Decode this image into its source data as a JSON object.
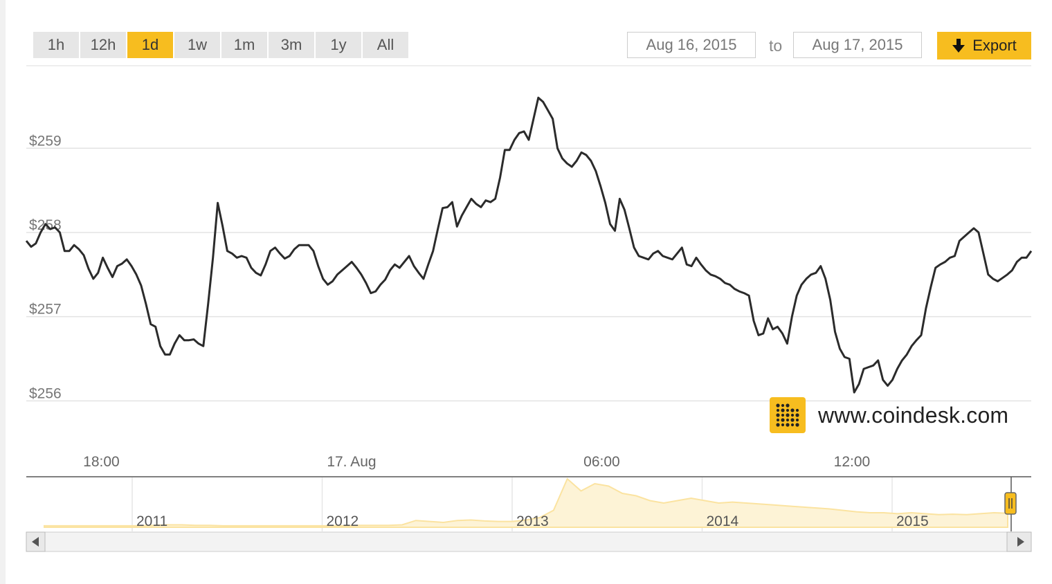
{
  "toolbar": {
    "ranges": [
      "1h",
      "12h",
      "1d",
      "1w",
      "1m",
      "3m",
      "1y",
      "All"
    ],
    "active_range": "1d",
    "from_date": "Aug 16, 2015",
    "to_label": "to",
    "to_date": "Aug 17, 2015",
    "export_label": "Export"
  },
  "branding": {
    "site": "www.coindesk.com"
  },
  "colors": {
    "accent": "#f7bd1f",
    "line": "#2b2b2b",
    "grid": "#e3e3e3",
    "navigator_fill": "#fdf3d6"
  },
  "chart_data": {
    "type": "line",
    "title": "",
    "xlabel": "",
    "ylabel": "",
    "ylim": [
      255.83,
      259.98
    ],
    "y_ticks": [
      256,
      257,
      258,
      259
    ],
    "y_tick_labels": [
      "$256",
      "$257",
      "$258",
      "$259"
    ],
    "x_tick_labels": [
      "18:00",
      "17. Aug",
      "06:00",
      "12:00"
    ],
    "x_tick_positions_hours": [
      1.8,
      7.8,
      13.8,
      19.8
    ],
    "x_range_hours": [
      0,
      24.1
    ],
    "series": [
      {
        "values": [
          257.9,
          257.83,
          257.87,
          258.0,
          258.1,
          258.04,
          258.06,
          258.0,
          257.78,
          257.78,
          257.85,
          257.8,
          257.73,
          257.57,
          257.45,
          257.52,
          257.7,
          257.58,
          257.47,
          257.6,
          257.63,
          257.68,
          257.6,
          257.5,
          257.37,
          257.15,
          256.91,
          256.88,
          256.65,
          256.55,
          256.55,
          256.68,
          256.78,
          256.72,
          256.72,
          256.73,
          256.68,
          256.65,
          257.15,
          257.7,
          258.35,
          258.08,
          257.78,
          257.75,
          257.7,
          257.72,
          257.7,
          257.58,
          257.52,
          257.49,
          257.62,
          257.78,
          257.82,
          257.75,
          257.69,
          257.72,
          257.8,
          257.85,
          257.85,
          257.85,
          257.78,
          257.6,
          257.45,
          257.38,
          257.42,
          257.5,
          257.55,
          257.6,
          257.65,
          257.58,
          257.5,
          257.4,
          257.28,
          257.3,
          257.38,
          257.44,
          257.55,
          257.62,
          257.58,
          257.65,
          257.72,
          257.6,
          257.52,
          257.45,
          257.62,
          257.78,
          258.04,
          258.29,
          258.3,
          258.36,
          258.07,
          258.2,
          258.3,
          258.4,
          258.34,
          258.3,
          258.38,
          258.36,
          258.4,
          258.65,
          258.98,
          258.98,
          259.1,
          259.18,
          259.2,
          259.1,
          259.35,
          259.6,
          259.55,
          259.45,
          259.35,
          259.0,
          258.88,
          258.82,
          258.78,
          258.85,
          258.95,
          258.92,
          258.85,
          258.73,
          258.55,
          258.35,
          258.1,
          258.02,
          258.4,
          258.27,
          258.05,
          257.82,
          257.72,
          257.7,
          257.68,
          257.75,
          257.78,
          257.72,
          257.7,
          257.68,
          257.75,
          257.82,
          257.62,
          257.6,
          257.7,
          257.62,
          257.55,
          257.5,
          257.48,
          257.45,
          257.4,
          257.38,
          257.33,
          257.3,
          257.28,
          257.25,
          256.95,
          256.78,
          256.8,
          256.98,
          256.85,
          256.88,
          256.8,
          256.68,
          257.0,
          257.25,
          257.38,
          257.45,
          257.5,
          257.52,
          257.6,
          257.45,
          257.2,
          256.82,
          256.62,
          256.52,
          256.5,
          256.1,
          256.2,
          256.38,
          256.4,
          256.42,
          256.48,
          256.25,
          256.18,
          256.25,
          256.38,
          256.48,
          256.55,
          256.65,
          256.72,
          256.78,
          257.1,
          257.35,
          257.58,
          257.62,
          257.65,
          257.7,
          257.72,
          257.9,
          257.95,
          258.0,
          258.05,
          258.0,
          257.75,
          257.5,
          257.45,
          257.42,
          257.46,
          257.5,
          257.55,
          257.65,
          257.7,
          257.7,
          257.78
        ]
      }
    ],
    "navigator": {
      "year_labels": [
        "2011",
        "2012",
        "2013",
        "2014",
        "2015"
      ],
      "values": [
        0.03,
        0.03,
        0.03,
        0.03,
        0.03,
        0.03,
        0.03,
        0.03,
        0.04,
        0.05,
        0.05,
        0.04,
        0.04,
        0.03,
        0.03,
        0.03,
        0.03,
        0.03,
        0.03,
        0.03,
        0.03,
        0.03,
        0.03,
        0.04,
        0.04,
        0.04,
        0.05,
        0.14,
        0.12,
        0.1,
        0.14,
        0.15,
        0.13,
        0.12,
        0.12,
        0.15,
        0.2,
        0.35,
        1.0,
        0.75,
        0.9,
        0.85,
        0.7,
        0.65,
        0.55,
        0.5,
        0.55,
        0.6,
        0.55,
        0.5,
        0.52,
        0.5,
        0.48,
        0.46,
        0.44,
        0.42,
        0.4,
        0.38,
        0.35,
        0.32,
        0.3,
        0.3,
        0.28,
        0.3,
        0.28,
        0.26,
        0.27,
        0.26,
        0.28,
        0.3,
        0.29
      ]
    }
  }
}
